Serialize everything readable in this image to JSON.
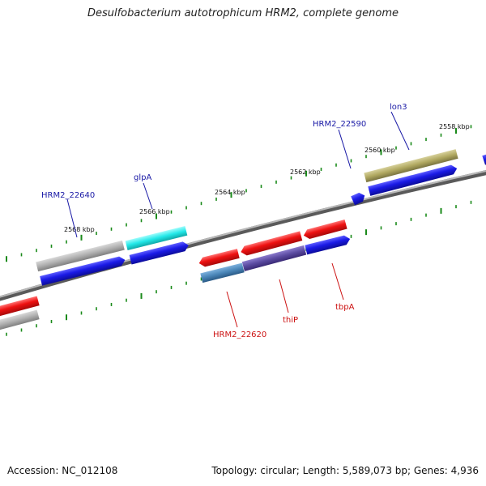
{
  "title": "Desulfobacterium autotrophicum HRM2, complete genome",
  "footer": {
    "accession": "Accession: NC_012108",
    "topology": "Topology: circular; Length: 5,589,073 bp; Genes: 4,936"
  },
  "ticks": [
    "2558 kbp",
    "2560 kbp",
    "2562 kbp",
    "2564 kbp",
    "2566 kbp",
    "2568 kbp"
  ],
  "gene_labels": {
    "lon3": "lon3",
    "hrm2_22590": "HRM2_22590",
    "glpA": "glpA",
    "hrm2_22640": "HRM2_22640",
    "hrm2_22620": "HRM2_22620",
    "thiP": "thiP",
    "tbpA": "tbpA"
  },
  "colors": {
    "blue": "#1a1ae6",
    "red": "#ee1111",
    "gray": "#a8a8a8",
    "cyan": "#22e8e8",
    "olive": "#b0a860",
    "steel": "#4a86b8",
    "purple": "#5a4aa0",
    "tick": "#1a8a1a",
    "backbone": "#777777"
  }
}
